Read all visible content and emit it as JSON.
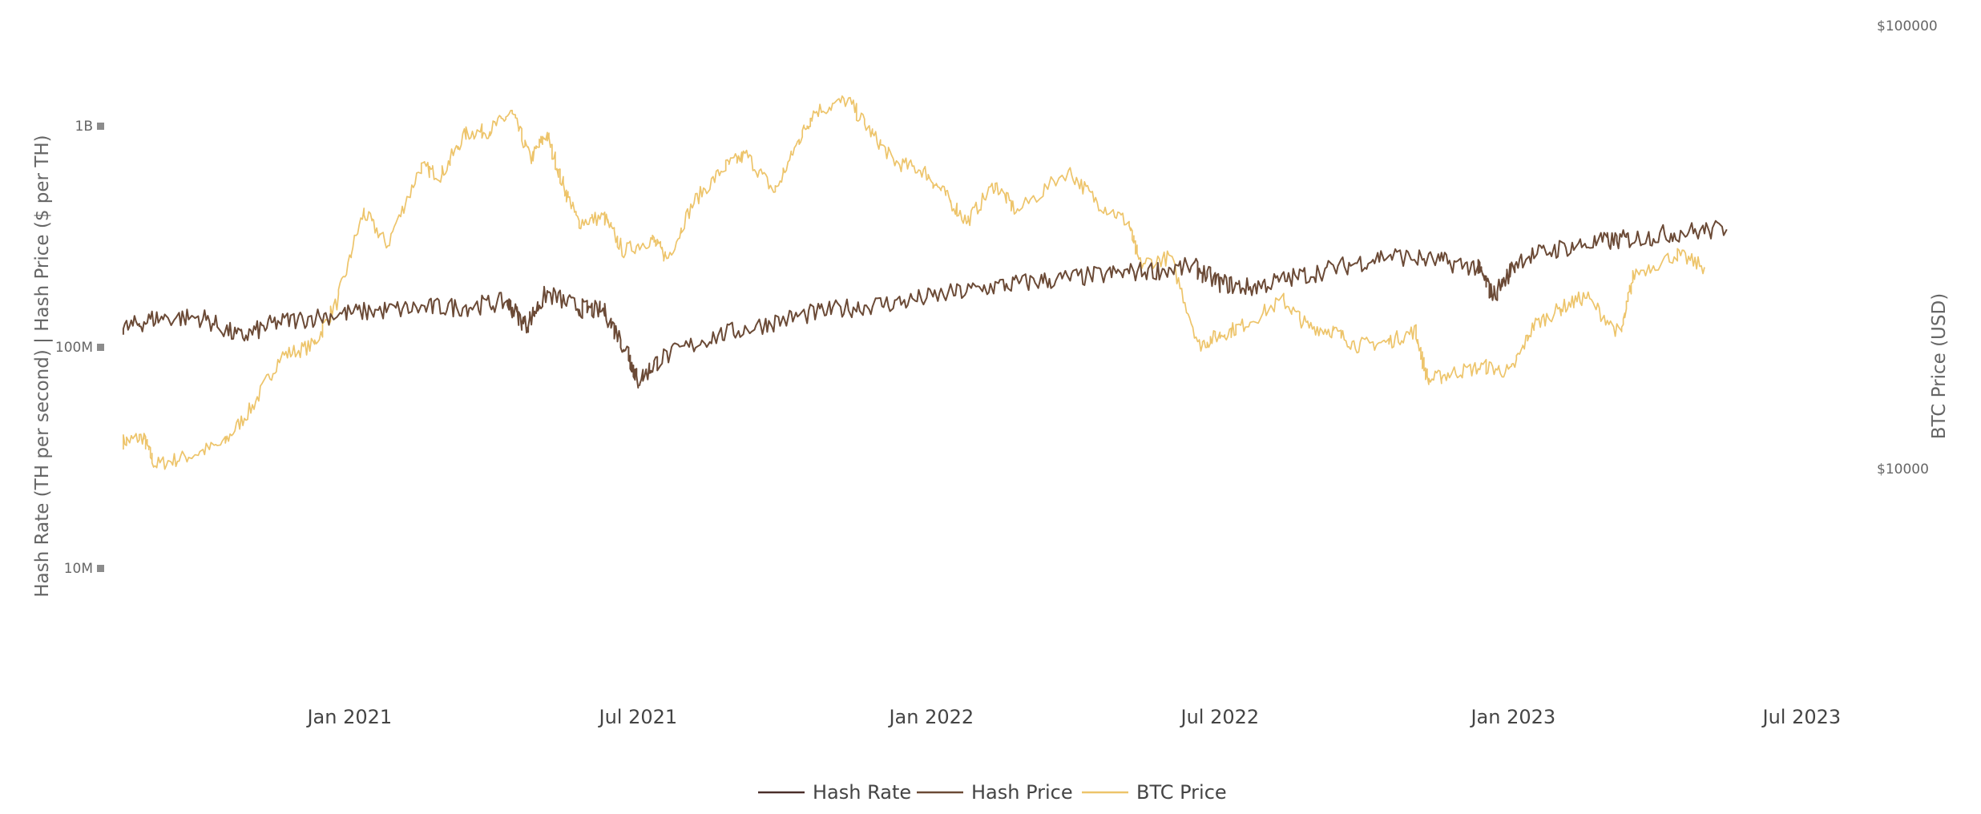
{
  "chart_data": {
    "type": "line",
    "title": "",
    "y_left_label": "Hash Rate (TH per second) | Hash Price ($ per TH)",
    "y_right_label": "BTC Price (USD)",
    "y_left_scale": "log",
    "y_right_scale": "log",
    "y_left_range": [
      1000000,
      10000000000
    ],
    "y_right_range": [
      3000,
      100000
    ],
    "y_left_ticks": [
      {
        "value": 1000000000,
        "label": "1B"
      },
      {
        "value": 100000000,
        "label": "100M"
      },
      {
        "value": 10000000,
        "label": "10M"
      }
    ],
    "y_right_ticks": [
      {
        "value": 100000,
        "label": "$100000"
      },
      {
        "value": 10000,
        "label": "$10000"
      }
    ],
    "x_range": [
      "2020-08-01",
      "2023-07-31"
    ],
    "x_ticks": [
      {
        "value": "2021-01-01",
        "label": "Jan 2021"
      },
      {
        "value": "2021-07-01",
        "label": "Jul 2021"
      },
      {
        "value": "2022-01-01",
        "label": "Jan 2022"
      },
      {
        "value": "2022-07-01",
        "label": "Jul 2022"
      },
      {
        "value": "2023-01-01",
        "label": "Jan 2023"
      },
      {
        "value": "2023-07-01",
        "label": "Jul 2023"
      }
    ],
    "grid": false,
    "legend_position": "bottom-center",
    "series": [
      {
        "name": "Hash Rate",
        "axis": "left",
        "color": "#4a2e2a",
        "points": []
      },
      {
        "name": "Hash Price",
        "axis": "left",
        "color": "#6b4a36",
        "points": [
          [
            "2020-08-12",
            120000000
          ],
          [
            "2020-09-01",
            135000000
          ],
          [
            "2020-10-01",
            136000000
          ],
          [
            "2020-10-25",
            110000000
          ],
          [
            "2020-11-15",
            128000000
          ],
          [
            "2020-12-15",
            138000000
          ],
          [
            "2021-01-15",
            145000000
          ],
          [
            "2021-02-15",
            150000000
          ],
          [
            "2021-03-15",
            152000000
          ],
          [
            "2021-04-10",
            160000000
          ],
          [
            "2021-04-22",
            125000000
          ],
          [
            "2021-05-05",
            175000000
          ],
          [
            "2021-05-25",
            150000000
          ],
          [
            "2021-06-10",
            145000000
          ],
          [
            "2021-06-25",
            95000000
          ],
          [
            "2021-07-01",
            70000000
          ],
          [
            "2021-07-15",
            88000000
          ],
          [
            "2021-08-15",
            110000000
          ],
          [
            "2021-09-15",
            125000000
          ],
          [
            "2021-10-15",
            140000000
          ],
          [
            "2021-11-15",
            152000000
          ],
          [
            "2021-12-15",
            160000000
          ],
          [
            "2022-01-15",
            175000000
          ],
          [
            "2022-02-15",
            190000000
          ],
          [
            "2022-03-15",
            200000000
          ],
          [
            "2022-04-15",
            210000000
          ],
          [
            "2022-05-15",
            220000000
          ],
          [
            "2022-06-15",
            230000000
          ],
          [
            "2022-07-01",
            195000000
          ],
          [
            "2022-07-20",
            185000000
          ],
          [
            "2022-08-15",
            205000000
          ],
          [
            "2022-09-15",
            230000000
          ],
          [
            "2022-10-15",
            260000000
          ],
          [
            "2022-11-15",
            245000000
          ],
          [
            "2022-12-10",
            230000000
          ],
          [
            "2022-12-20",
            170000000
          ],
          [
            "2023-01-05",
            250000000
          ],
          [
            "2023-02-01",
            280000000
          ],
          [
            "2023-03-01",
            300000000
          ],
          [
            "2023-03-20",
            310000000
          ],
          [
            "2023-04-15",
            330000000
          ],
          [
            "2023-05-15",
            340000000
          ]
        ]
      },
      {
        "name": "BTC Price",
        "axis": "right",
        "color": "#edc46a",
        "points": [
          [
            "2020-08-12",
            11500
          ],
          [
            "2020-08-25",
            11800
          ],
          [
            "2020-09-01",
            10200
          ],
          [
            "2020-09-20",
            10600
          ],
          [
            "2020-10-15",
            11400
          ],
          [
            "2020-11-01",
            13800
          ],
          [
            "2020-11-20",
            18000
          ],
          [
            "2020-12-10",
            19000
          ],
          [
            "2020-12-25",
            24000
          ],
          [
            "2021-01-10",
            38000
          ],
          [
            "2021-01-25",
            32000
          ],
          [
            "2021-02-15",
            48000
          ],
          [
            "2021-02-28",
            46000
          ],
          [
            "2021-03-15",
            57000
          ],
          [
            "2021-03-30",
            58000
          ],
          [
            "2021-04-13",
            63500
          ],
          [
            "2021-04-25",
            50000
          ],
          [
            "2021-05-05",
            57000
          ],
          [
            "2021-05-15",
            44000
          ],
          [
            "2021-05-25",
            36000
          ],
          [
            "2021-06-10",
            37000
          ],
          [
            "2021-06-22",
            31000
          ],
          [
            "2021-07-10",
            33000
          ],
          [
            "2021-07-20",
            29800
          ],
          [
            "2021-08-05",
            40000
          ],
          [
            "2021-08-25",
            48000
          ],
          [
            "2021-09-07",
            51000
          ],
          [
            "2021-09-25",
            42000
          ],
          [
            "2021-10-10",
            55000
          ],
          [
            "2021-10-20",
            64000
          ],
          [
            "2021-11-10",
            68000
          ],
          [
            "2021-11-25",
            57000
          ],
          [
            "2021-12-10",
            49000
          ],
          [
            "2021-12-28",
            47000
          ],
          [
            "2022-01-10",
            41500
          ],
          [
            "2022-01-24",
            36000
          ],
          [
            "2022-02-10",
            44000
          ],
          [
            "2022-02-24",
            38000
          ],
          [
            "2022-03-28",
            47000
          ],
          [
            "2022-04-15",
            40000
          ],
          [
            "2022-05-05",
            36000
          ],
          [
            "2022-05-12",
            29000
          ],
          [
            "2022-06-01",
            30000
          ],
          [
            "2022-06-18",
            19000
          ],
          [
            "2022-07-01",
            20000
          ],
          [
            "2022-07-15",
            21000
          ],
          [
            "2022-08-10",
            24000
          ],
          [
            "2022-08-25",
            21000
          ],
          [
            "2022-09-10",
            20500
          ],
          [
            "2022-09-25",
            19000
          ],
          [
            "2022-10-15",
            19300
          ],
          [
            "2022-11-01",
            20500
          ],
          [
            "2022-11-09",
            15800
          ],
          [
            "2022-11-25",
            16500
          ],
          [
            "2022-12-15",
            17000
          ],
          [
            "2022-12-31",
            16500
          ],
          [
            "2023-01-14",
            21000
          ],
          [
            "2023-01-31",
            23000
          ],
          [
            "2023-02-16",
            24500
          ],
          [
            "2023-03-10",
            20000
          ],
          [
            "2023-03-18",
            27500
          ],
          [
            "2023-04-14",
            30500
          ],
          [
            "2023-05-01",
            28500
          ]
        ]
      }
    ]
  }
}
